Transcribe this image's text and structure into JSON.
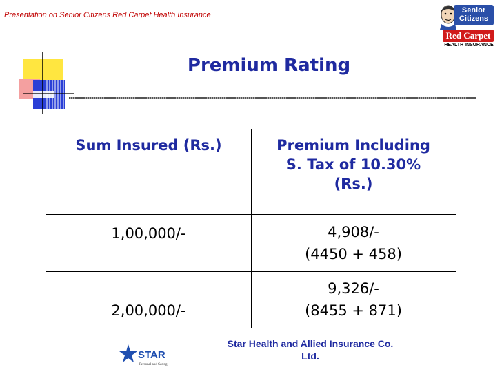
{
  "header": {
    "text": "Presentation on Senior Citizens Red Carpet Health Insurance"
  },
  "logo": {
    "line1": "Senior",
    "line2": "Citizens",
    "banner": "Red Carpet",
    "tagline": "HEALTH INSURANCE"
  },
  "title": "Premium Rating",
  "table": {
    "headers": [
      "Sum Insured (Rs.)",
      "Premium Including",
      "S. Tax of 10.30%",
      "(Rs.)"
    ],
    "rows": [
      {
        "sum": "1,00,000/-",
        "premium": "4,908/-",
        "breakdown": "(4450 + 458)"
      },
      {
        "sum": "2,00,000/-",
        "premium": "9,326/-",
        "breakdown": "(8455 + 871)"
      }
    ]
  },
  "footer": {
    "company_line1": "Star Health and Allied Insurance Co.",
    "company_line2": "Ltd.",
    "star_logo": "STAR",
    "star_tag": "Personal and Caring"
  },
  "colors": {
    "title": "#1f2aa0",
    "header_text": "#c00000",
    "logo_blue": "#2a4fa8",
    "logo_red": "#d11a1a"
  },
  "icons": {
    "deco": "decorative-squares-icon",
    "face": "mascot-face-icon",
    "star": "star-logo-icon"
  }
}
